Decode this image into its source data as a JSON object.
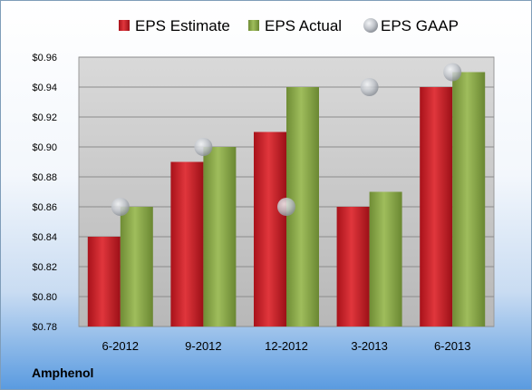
{
  "company": "Amphenol",
  "colors": {
    "estimate": "#c8191e",
    "actual": "#8aa84a",
    "gaap": "#c5c9cf",
    "plot_bg": "#c4c4c4",
    "grid": "#8c8c8c"
  },
  "chart_data": {
    "type": "bar",
    "categories": [
      "6-2012",
      "9-2012",
      "12-2012",
      "3-2013",
      "6-2013"
    ],
    "series": [
      {
        "name": "EPS Estimate",
        "kind": "bar",
        "color": "#c8191e",
        "values": [
          0.84,
          0.89,
          0.91,
          0.86,
          0.94
        ]
      },
      {
        "name": "EPS Actual",
        "kind": "bar",
        "color": "#8aa84a",
        "values": [
          0.86,
          0.9,
          0.94,
          0.87,
          0.95
        ]
      },
      {
        "name": "EPS GAAP",
        "kind": "marker",
        "color": "#c5c9cf",
        "values": [
          0.86,
          0.9,
          0.86,
          0.94,
          0.95
        ]
      }
    ],
    "ylim": [
      0.78,
      0.96
    ],
    "yticks": [
      "$0.78",
      "$0.80",
      "$0.82",
      "$0.84",
      "$0.86",
      "$0.88",
      "$0.90",
      "$0.92",
      "$0.94",
      "$0.96"
    ],
    "ytick_values": [
      0.78,
      0.8,
      0.82,
      0.84,
      0.86,
      0.88,
      0.9,
      0.92,
      0.94,
      0.96
    ],
    "grid": true,
    "legend_position": "top"
  }
}
